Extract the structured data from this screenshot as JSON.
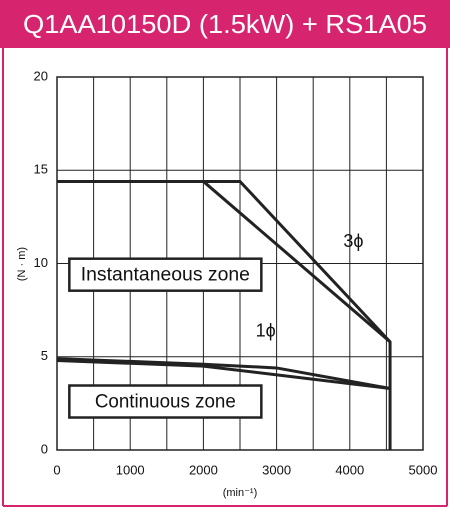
{
  "chart_data": {
    "type": "line",
    "title": "Q1AA10150D (1.5kW) + RS1A05",
    "y_label": "(N · m)",
    "x_label": "(min⁻¹)",
    "xlim": [
      0,
      5000
    ],
    "xticks": [
      0,
      1000,
      2000,
      3000,
      4000,
      5000
    ],
    "xminorticks": [
      500,
      1500,
      2500,
      3500,
      4500
    ],
    "ylim": [
      0,
      20
    ],
    "yticks": [
      0,
      5,
      10,
      15,
      20
    ],
    "grid": true,
    "series": [
      {
        "color": "#222222",
        "x": [
          0,
          2500,
          4550,
          4550
        ],
        "values": [
          14.4,
          14.4,
          5.8,
          0
        ]
      },
      {
        "color": "#222222",
        "x": [
          2000,
          4550
        ],
        "values": [
          14.4,
          5.8
        ]
      },
      {
        "color": "#222222",
        "x": [
          0,
          2000,
          3000,
          4550
        ],
        "values": [
          4.9,
          4.6,
          4.4,
          3.3
        ]
      },
      {
        "color": "#222222",
        "x": [
          0,
          2000,
          4550
        ],
        "values": [
          4.8,
          4.5,
          3.3
        ]
      }
    ],
    "annotations": [
      {
        "text": "3ϕ",
        "x": 4050,
        "y": 11.2
      },
      {
        "text": "1ϕ",
        "x": 2850,
        "y": 6.4
      },
      {
        "text": "Instantaneous zone",
        "x": 1480,
        "y": 9.4,
        "box": true
      },
      {
        "text": "Continuous zone",
        "x": 1480,
        "y": 2.6,
        "box": true
      }
    ]
  }
}
